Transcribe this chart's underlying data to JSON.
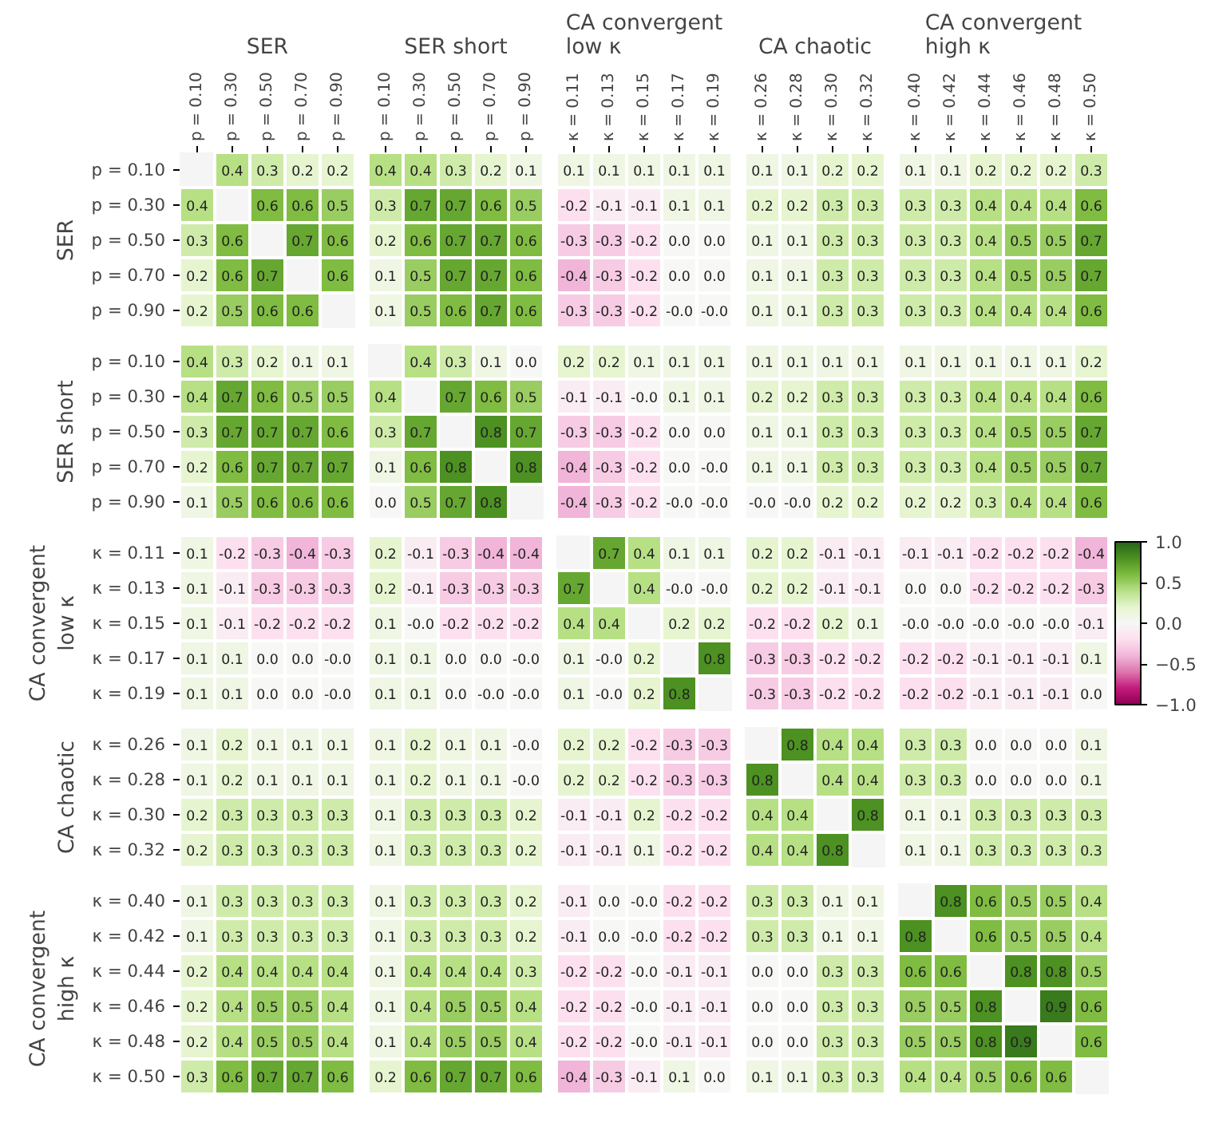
{
  "chart_data": [
    {
      "type": "heatmap",
      "title": "SER",
      "ylabel": "SER",
      "categories": [
        "p = 0.10",
        "p = 0.30",
        "p = 0.50",
        "p = 0.70",
        "p = 0.90"
      ],
      "y_categories": [
        "p = 0.10",
        "p = 0.30",
        "p = 0.50",
        "p = 0.70",
        "p = 0.90"
      ],
      "cells": [
        [
          null,
          0.4,
          0.3,
          0.2,
          0.2
        ],
        [
          0.4,
          null,
          0.6,
          0.6,
          0.5
        ],
        [
          0.3,
          0.6,
          null,
          0.7,
          0.6
        ],
        [
          0.2,
          0.6,
          0.7,
          null,
          0.6
        ],
        [
          0.2,
          0.5,
          0.6,
          0.6,
          null
        ]
      ],
      "data_labels": true
    },
    {
      "type": "heatmap",
      "title": "SER short",
      "categories": [
        "p = 0.10",
        "p = 0.30",
        "p = 0.50",
        "p = 0.70",
        "p = 0.90"
      ],
      "y_categories": [
        "p = 0.10",
        "p = 0.30",
        "p = 0.50",
        "p = 0.70",
        "p = 0.90"
      ],
      "cells": [
        [
          0.4,
          0.4,
          0.3,
          0.2,
          0.1
        ],
        [
          0.3,
          0.7,
          0.7,
          0.6,
          0.5
        ],
        [
          0.2,
          0.6,
          0.7,
          0.7,
          0.6
        ],
        [
          0.1,
          0.5,
          0.7,
          0.7,
          0.6
        ],
        [
          0.1,
          0.5,
          0.6,
          0.7,
          0.6
        ]
      ],
      "data_labels": true,
      "tick_labels": "x"
    },
    {
      "type": "heatmap",
      "title": "CA convergent\nlow κ",
      "categories": [
        "κ = 0.11",
        "κ = 0.13",
        "κ = 0.15",
        "κ = 0.17",
        "κ = 0.19"
      ],
      "y_categories": [
        "p = 0.10",
        "p = 0.30",
        "p = 0.50",
        "p = 0.70",
        "p = 0.90"
      ],
      "cells": [
        [
          0.1,
          0.1,
          0.1,
          0.1,
          0.1
        ],
        [
          -0.2,
          -0.1,
          -0.1,
          0.1,
          0.1
        ],
        [
          -0.3,
          -0.3,
          -0.2,
          0.0,
          0.0
        ],
        [
          -0.4,
          -0.3,
          -0.2,
          0.0,
          0.0
        ],
        [
          -0.3,
          -0.3,
          -0.2,
          -0.0,
          -0.0
        ]
      ],
      "cell_labels": [
        [
          "0.1",
          "0.1",
          "0.1",
          "0.1",
          "0.1"
        ],
        [
          "-0.2",
          "-0.1",
          "-0.1",
          "0.1",
          "0.1"
        ],
        [
          "-0.3",
          "-0.3",
          "-0.2",
          "0.0",
          "0.0"
        ],
        [
          "-0.4",
          "-0.3",
          "-0.2",
          "0.0",
          "0.0"
        ],
        [
          "-0.3",
          "-0.3",
          "-0.2",
          "-0.0",
          "-0.0"
        ]
      ],
      "data_labels": true,
      "tick_labels": "x"
    },
    {
      "type": "heatmap",
      "title": "CA chaotic",
      "categories": [
        "κ = 0.26",
        "κ = 0.28",
        "κ = 0.30",
        "κ = 0.32"
      ],
      "y_categories": [
        "p = 0.10",
        "p = 0.30",
        "p = 0.50",
        "p = 0.70",
        "p = 0.90"
      ],
      "cells": [
        [
          0.1,
          0.1,
          0.2,
          0.2
        ],
        [
          0.2,
          0.2,
          0.3,
          0.3
        ],
        [
          0.1,
          0.1,
          0.3,
          0.3
        ],
        [
          0.1,
          0.1,
          0.3,
          0.3
        ],
        [
          0.1,
          0.1,
          0.3,
          0.3
        ]
      ],
      "data_labels": true,
      "tick_labels": "x"
    },
    {
      "type": "heatmap",
      "title": "CA convergent\nhigh κ",
      "categories": [
        "κ = 0.40",
        "κ = 0.42",
        "κ = 0.44",
        "κ = 0.46",
        "κ = 0.48",
        "κ = 0.50"
      ],
      "y_categories": [
        "p = 0.10",
        "p = 0.30",
        "p = 0.50",
        "p = 0.70",
        "p = 0.90"
      ],
      "cells": [
        [
          0.1,
          0.1,
          0.2,
          0.2,
          0.2,
          0.3
        ],
        [
          0.3,
          0.3,
          0.4,
          0.4,
          0.4,
          0.6
        ],
        [
          0.3,
          0.3,
          0.4,
          0.5,
          0.5,
          0.7
        ],
        [
          0.3,
          0.3,
          0.4,
          0.5,
          0.5,
          0.7
        ],
        [
          0.3,
          0.3,
          0.4,
          0.4,
          0.4,
          0.6
        ]
      ],
      "data_labels": true,
      "tick_labels": "x"
    },
    {
      "type": "heatmap",
      "ylabel": "SER short",
      "categories": [
        "p = 0.10",
        "p = 0.30",
        "p = 0.50",
        "p = 0.70",
        "p = 0.90"
      ],
      "y_categories": [
        "p = 0.10",
        "p = 0.30",
        "p = 0.50",
        "p = 0.70",
        "p = 0.90"
      ],
      "cells": [
        [
          0.4,
          0.3,
          0.2,
          0.1,
          0.1
        ],
        [
          0.4,
          0.7,
          0.6,
          0.5,
          0.5
        ],
        [
          0.3,
          0.7,
          0.7,
          0.7,
          0.6
        ],
        [
          0.2,
          0.6,
          0.7,
          0.7,
          0.7
        ],
        [
          0.1,
          0.5,
          0.6,
          0.6,
          0.6
        ]
      ],
      "data_labels": true,
      "tick_labels": "y"
    },
    {
      "type": "heatmap",
      "categories": [
        "p = 0.10",
        "p = 0.30",
        "p = 0.50",
        "p = 0.70",
        "p = 0.90"
      ],
      "y_categories": [
        "p = 0.10",
        "p = 0.30",
        "p = 0.50",
        "p = 0.70",
        "p = 0.90"
      ],
      "cells": [
        [
          null,
          0.4,
          0.3,
          0.1,
          0.0
        ],
        [
          0.4,
          null,
          0.7,
          0.6,
          0.5
        ],
        [
          0.3,
          0.7,
          null,
          0.8,
          0.7
        ],
        [
          0.1,
          0.6,
          0.8,
          null,
          0.8
        ],
        [
          0.0,
          0.5,
          0.7,
          0.8,
          null
        ]
      ],
      "cell_labels": [
        [
          null,
          "0.4",
          "0.3",
          "0.1",
          "0.0"
        ],
        [
          "0.4",
          null,
          "0.7",
          "0.6",
          "0.5"
        ],
        [
          "0.3",
          "0.7",
          null,
          "0.8",
          "0.7"
        ],
        [
          "0.1",
          "0.6",
          "0.8",
          null,
          "0.8"
        ],
        [
          "0.0",
          "0.5",
          "0.7",
          "0.8",
          null
        ]
      ],
      "data_labels": true,
      "tick_labels": false
    },
    {
      "type": "heatmap",
      "categories": [
        "κ = 0.11",
        "κ = 0.13",
        "κ = 0.15",
        "κ = 0.17",
        "κ = 0.19"
      ],
      "y_categories": [
        "p = 0.10",
        "p = 0.30",
        "p = 0.50",
        "p = 0.70",
        "p = 0.90"
      ],
      "cells": [
        [
          0.2,
          0.2,
          0.1,
          0.1,
          0.1
        ],
        [
          -0.1,
          -0.1,
          -0.0,
          0.1,
          0.1
        ],
        [
          -0.3,
          -0.3,
          -0.2,
          0.0,
          0.0
        ],
        [
          -0.4,
          -0.3,
          -0.2,
          0.0,
          -0.0
        ],
        [
          -0.4,
          -0.3,
          -0.2,
          -0.0,
          -0.0
        ]
      ],
      "cell_labels": [
        [
          "0.2",
          "0.2",
          "0.1",
          "0.1",
          "0.1"
        ],
        [
          "-0.1",
          "-0.1",
          "-0.0",
          "0.1",
          "0.1"
        ],
        [
          "-0.3",
          "-0.3",
          "-0.2",
          "0.0",
          "0.0"
        ],
        [
          "-0.4",
          "-0.3",
          "-0.2",
          "0.0",
          "-0.0"
        ],
        [
          "-0.4",
          "-0.3",
          "-0.2",
          "-0.0",
          "-0.0"
        ]
      ],
      "data_labels": true,
      "tick_labels": false
    },
    {
      "type": "heatmap",
      "categories": [
        "κ = 0.26",
        "κ = 0.28",
        "κ = 0.30",
        "κ = 0.32"
      ],
      "y_categories": [
        "p = 0.10",
        "p = 0.30",
        "p = 0.50",
        "p = 0.70",
        "p = 0.90"
      ],
      "cells": [
        [
          0.1,
          0.1,
          0.1,
          0.1
        ],
        [
          0.2,
          0.2,
          0.3,
          0.3
        ],
        [
          0.1,
          0.1,
          0.3,
          0.3
        ],
        [
          0.1,
          0.1,
          0.3,
          0.3
        ],
        [
          -0.0,
          -0.0,
          0.2,
          0.2
        ]
      ],
      "cell_labels": [
        [
          "0.1",
          "0.1",
          "0.1",
          "0.1"
        ],
        [
          "0.2",
          "0.2",
          "0.3",
          "0.3"
        ],
        [
          "0.1",
          "0.1",
          "0.3",
          "0.3"
        ],
        [
          "0.1",
          "0.1",
          "0.3",
          "0.3"
        ],
        [
          "-0.0",
          "-0.0",
          "0.2",
          "0.2"
        ]
      ],
      "data_labels": true,
      "tick_labels": false
    },
    {
      "type": "heatmap",
      "categories": [
        "κ = 0.40",
        "κ = 0.42",
        "κ = 0.44",
        "κ = 0.46",
        "κ = 0.48",
        "κ = 0.50"
      ],
      "y_categories": [
        "p = 0.10",
        "p = 0.30",
        "p = 0.50",
        "p = 0.70",
        "p = 0.90"
      ],
      "cells": [
        [
          0.1,
          0.1,
          0.1,
          0.1,
          0.1,
          0.2
        ],
        [
          0.3,
          0.3,
          0.4,
          0.4,
          0.4,
          0.6
        ],
        [
          0.3,
          0.3,
          0.4,
          0.5,
          0.5,
          0.7
        ],
        [
          0.3,
          0.3,
          0.4,
          0.5,
          0.5,
          0.7
        ],
        [
          0.2,
          0.2,
          0.3,
          0.4,
          0.4,
          0.6
        ]
      ],
      "data_labels": true,
      "tick_labels": false
    },
    {
      "type": "heatmap",
      "ylabel": "CA convergent\nlow κ",
      "categories": [
        "p = 0.10",
        "p = 0.30",
        "p = 0.50",
        "p = 0.70",
        "p = 0.90"
      ],
      "y_categories": [
        "κ = 0.11",
        "κ = 0.13",
        "κ = 0.15",
        "κ = 0.17",
        "κ = 0.19"
      ],
      "cells": [
        [
          0.1,
          -0.2,
          -0.3,
          -0.4,
          -0.3
        ],
        [
          0.1,
          -0.1,
          -0.3,
          -0.3,
          -0.3
        ],
        [
          0.1,
          -0.1,
          -0.2,
          -0.2,
          -0.2
        ],
        [
          0.1,
          0.1,
          0.0,
          0.0,
          -0.0
        ],
        [
          0.1,
          0.1,
          0.0,
          0.0,
          -0.0
        ]
      ],
      "cell_labels": [
        [
          "0.1",
          "-0.2",
          "-0.3",
          "-0.4",
          "-0.3"
        ],
        [
          "0.1",
          "-0.1",
          "-0.3",
          "-0.3",
          "-0.3"
        ],
        [
          "0.1",
          "-0.1",
          "-0.2",
          "-0.2",
          "-0.2"
        ],
        [
          "0.1",
          "0.1",
          "0.0",
          "0.0",
          "-0.0"
        ],
        [
          "0.1",
          "0.1",
          "0.0",
          "0.0",
          "-0.0"
        ]
      ],
      "data_labels": true,
      "tick_labels": "y"
    },
    {
      "type": "heatmap",
      "categories": [
        "p = 0.10",
        "p = 0.30",
        "p = 0.50",
        "p = 0.70",
        "p = 0.90"
      ],
      "y_categories": [
        "κ = 0.11",
        "κ = 0.13",
        "κ = 0.15",
        "κ = 0.17",
        "κ = 0.19"
      ],
      "cells": [
        [
          0.2,
          -0.1,
          -0.3,
          -0.4,
          -0.4
        ],
        [
          0.2,
          -0.1,
          -0.3,
          -0.3,
          -0.3
        ],
        [
          0.1,
          -0.0,
          -0.2,
          -0.2,
          -0.2
        ],
        [
          0.1,
          0.1,
          0.0,
          0.0,
          -0.0
        ],
        [
          0.1,
          0.1,
          0.0,
          -0.0,
          -0.0
        ]
      ],
      "cell_labels": [
        [
          "0.2",
          "-0.1",
          "-0.3",
          "-0.4",
          "-0.4"
        ],
        [
          "0.2",
          "-0.1",
          "-0.3",
          "-0.3",
          "-0.3"
        ],
        [
          "0.1",
          "-0.0",
          "-0.2",
          "-0.2",
          "-0.2"
        ],
        [
          "0.1",
          "0.1",
          "0.0",
          "0.0",
          "-0.0"
        ],
        [
          "0.1",
          "0.1",
          "0.0",
          "-0.0",
          "-0.0"
        ]
      ],
      "data_labels": true,
      "tick_labels": false
    },
    {
      "type": "heatmap",
      "categories": [
        "κ = 0.11",
        "κ = 0.13",
        "κ = 0.15",
        "κ = 0.17",
        "κ = 0.19"
      ],
      "y_categories": [
        "κ = 0.11",
        "κ = 0.13",
        "κ = 0.15",
        "κ = 0.17",
        "κ = 0.19"
      ],
      "cells": [
        [
          null,
          0.7,
          0.4,
          0.1,
          0.1
        ],
        [
          0.7,
          null,
          0.4,
          -0.0,
          -0.0
        ],
        [
          0.4,
          0.4,
          null,
          0.2,
          0.2
        ],
        [
          0.1,
          -0.0,
          0.2,
          null,
          0.8
        ],
        [
          0.1,
          -0.0,
          0.2,
          0.8,
          null
        ]
      ],
      "cell_labels": [
        [
          null,
          "0.7",
          "0.4",
          "0.1",
          "0.1"
        ],
        [
          "0.7",
          null,
          "0.4",
          "-0.0",
          "-0.0"
        ],
        [
          "0.4",
          "0.4",
          null,
          "0.2",
          "0.2"
        ],
        [
          "0.1",
          "-0.0",
          "0.2",
          null,
          "0.8"
        ],
        [
          "0.1",
          "-0.0",
          "0.2",
          "0.8",
          null
        ]
      ],
      "data_labels": true,
      "tick_labels": false
    },
    {
      "type": "heatmap",
      "categories": [
        "κ = 0.26",
        "κ = 0.28",
        "κ = 0.30",
        "κ = 0.32"
      ],
      "y_categories": [
        "κ = 0.11",
        "κ = 0.13",
        "κ = 0.15",
        "κ = 0.17",
        "κ = 0.19"
      ],
      "cells": [
        [
          0.2,
          0.2,
          -0.1,
          -0.1
        ],
        [
          0.2,
          0.2,
          -0.1,
          -0.1
        ],
        [
          -0.2,
          -0.2,
          0.2,
          0.1
        ],
        [
          -0.3,
          -0.3,
          -0.2,
          -0.2
        ],
        [
          -0.3,
          -0.3,
          -0.2,
          -0.2
        ]
      ],
      "data_labels": true,
      "tick_labels": false
    },
    {
      "type": "heatmap",
      "categories": [
        "κ = 0.40",
        "κ = 0.42",
        "κ = 0.44",
        "κ = 0.46",
        "κ = 0.48",
        "κ = 0.50"
      ],
      "y_categories": [
        "κ = 0.11",
        "κ = 0.13",
        "κ = 0.15",
        "κ = 0.17",
        "κ = 0.19"
      ],
      "cells": [
        [
          -0.1,
          -0.1,
          -0.2,
          -0.2,
          -0.2,
          -0.4
        ],
        [
          0.0,
          0.0,
          -0.2,
          -0.2,
          -0.2,
          -0.3
        ],
        [
          -0.0,
          -0.0,
          -0.0,
          -0.0,
          -0.0,
          -0.1
        ],
        [
          -0.2,
          -0.2,
          -0.1,
          -0.1,
          -0.1,
          0.1
        ],
        [
          -0.2,
          -0.2,
          -0.1,
          -0.1,
          -0.1,
          0.0
        ]
      ],
      "cell_labels": [
        [
          "-0.1",
          "-0.1",
          "-0.2",
          "-0.2",
          "-0.2",
          "-0.4"
        ],
        [
          "0.0",
          "0.0",
          "-0.2",
          "-0.2",
          "-0.2",
          "-0.3"
        ],
        [
          "-0.0",
          "-0.0",
          "-0.0",
          "-0.0",
          "-0.0",
          "-0.1"
        ],
        [
          "-0.2",
          "-0.2",
          "-0.1",
          "-0.1",
          "-0.1",
          "0.1"
        ],
        [
          "-0.2",
          "-0.2",
          "-0.1",
          "-0.1",
          "-0.1",
          "0.0"
        ]
      ],
      "clim": [
        -1,
        1
      ],
      "cticks": [
        {
          "value": -1.0,
          "label": "−1.0"
        },
        {
          "value": -0.5,
          "label": "−0.5"
        },
        {
          "value": 0.0,
          "label": "0.0"
        },
        {
          "value": 0.5,
          "label": "0.5"
        },
        {
          "value": 1.0,
          "label": "1.0"
        }
      ],
      "data_labels": true,
      "tick_labels": false
    },
    {
      "type": "heatmap",
      "ylabel": "CA chaotic",
      "categories": [
        "p = 0.10",
        "p = 0.30",
        "p = 0.50",
        "p = 0.70",
        "p = 0.90"
      ],
      "y_categories": [
        "κ = 0.26",
        "κ = 0.28",
        "κ = 0.30",
        "κ = 0.32"
      ],
      "cells": [
        [
          0.1,
          0.2,
          0.1,
          0.1,
          0.1
        ],
        [
          0.1,
          0.2,
          0.1,
          0.1,
          0.1
        ],
        [
          0.2,
          0.3,
          0.3,
          0.3,
          0.3
        ],
        [
          0.2,
          0.3,
          0.3,
          0.3,
          0.3
        ]
      ],
      "data_labels": true,
      "tick_labels": "y"
    },
    {
      "type": "heatmap",
      "categories": [
        "p = 0.10",
        "p = 0.30",
        "p = 0.50",
        "p = 0.70",
        "p = 0.90"
      ],
      "y_categories": [
        "κ = 0.26",
        "κ = 0.28",
        "κ = 0.30",
        "κ = 0.32"
      ],
      "cells": [
        [
          0.1,
          0.2,
          0.1,
          0.1,
          -0.0
        ],
        [
          0.1,
          0.2,
          0.1,
          0.1,
          -0.0
        ],
        [
          0.1,
          0.3,
          0.3,
          0.3,
          0.2
        ],
        [
          0.1,
          0.3,
          0.3,
          0.3,
          0.2
        ]
      ],
      "cell_labels": [
        [
          "0.1",
          "0.2",
          "0.1",
          "0.1",
          "-0.0"
        ],
        [
          "0.1",
          "0.2",
          "0.1",
          "0.1",
          "-0.0"
        ],
        [
          "0.1",
          "0.3",
          "0.3",
          "0.3",
          "0.2"
        ],
        [
          "0.1",
          "0.3",
          "0.3",
          "0.3",
          "0.2"
        ]
      ],
      "data_labels": true,
      "tick_labels": false
    },
    {
      "type": "heatmap",
      "categories": [
        "κ = 0.11",
        "κ = 0.13",
        "κ = 0.15",
        "κ = 0.17",
        "κ = 0.19"
      ],
      "y_categories": [
        "κ = 0.26",
        "κ = 0.28",
        "κ = 0.30",
        "κ = 0.32"
      ],
      "cells": [
        [
          0.2,
          0.2,
          -0.2,
          -0.3,
          -0.3
        ],
        [
          0.2,
          0.2,
          -0.2,
          -0.3,
          -0.3
        ],
        [
          -0.1,
          -0.1,
          0.2,
          -0.2,
          -0.2
        ],
        [
          -0.1,
          -0.1,
          0.1,
          -0.2,
          -0.2
        ]
      ],
      "data_labels": true,
      "tick_labels": false
    },
    {
      "type": "heatmap",
      "categories": [
        "κ = 0.26",
        "κ = 0.28",
        "κ = 0.30",
        "κ = 0.32"
      ],
      "y_categories": [
        "κ = 0.26",
        "κ = 0.28",
        "κ = 0.30",
        "κ = 0.32"
      ],
      "cells": [
        [
          null,
          0.8,
          0.4,
          0.4
        ],
        [
          0.8,
          null,
          0.4,
          0.4
        ],
        [
          0.4,
          0.4,
          null,
          0.8
        ],
        [
          0.4,
          0.4,
          0.8,
          null
        ]
      ],
      "data_labels": true,
      "tick_labels": false
    },
    {
      "type": "heatmap",
      "categories": [
        "κ = 0.40",
        "κ = 0.42",
        "κ = 0.44",
        "κ = 0.46",
        "κ = 0.48",
        "κ = 0.50"
      ],
      "y_categories": [
        "κ = 0.26",
        "κ = 0.28",
        "κ = 0.30",
        "κ = 0.32"
      ],
      "cells": [
        [
          0.3,
          0.3,
          0.0,
          0.0,
          0.0,
          0.1
        ],
        [
          0.3,
          0.3,
          0.0,
          0.0,
          0.0,
          0.1
        ],
        [
          0.1,
          0.1,
          0.3,
          0.3,
          0.3,
          0.3
        ],
        [
          0.1,
          0.1,
          0.3,
          0.3,
          0.3,
          0.3
        ]
      ],
      "cell_labels": [
        [
          "0.3",
          "0.3",
          "0.0",
          "0.0",
          "0.0",
          "0.1"
        ],
        [
          "0.3",
          "0.3",
          "0.0",
          "0.0",
          "0.0",
          "0.1"
        ],
        [
          "0.1",
          "0.1",
          "0.3",
          "0.3",
          "0.3",
          "0.3"
        ],
        [
          "0.1",
          "0.1",
          "0.3",
          "0.3",
          "0.3",
          "0.3"
        ]
      ],
      "data_labels": true,
      "tick_labels": false
    },
    {
      "type": "heatmap",
      "ylabel": "CA convergent\nhigh κ",
      "categories": [
        "p = 0.10",
        "p = 0.30",
        "p = 0.50",
        "p = 0.70",
        "p = 0.90"
      ],
      "y_categories": [
        "κ = 0.40",
        "κ = 0.42",
        "κ = 0.44",
        "κ = 0.46",
        "κ = 0.48",
        "κ = 0.50"
      ],
      "cells": [
        [
          0.1,
          0.3,
          0.3,
          0.3,
          0.3
        ],
        [
          0.1,
          0.3,
          0.3,
          0.3,
          0.3
        ],
        [
          0.2,
          0.4,
          0.4,
          0.4,
          0.4
        ],
        [
          0.2,
          0.4,
          0.5,
          0.5,
          0.4
        ],
        [
          0.2,
          0.4,
          0.5,
          0.5,
          0.4
        ],
        [
          0.3,
          0.6,
          0.7,
          0.7,
          0.6
        ]
      ],
      "data_labels": true,
      "tick_labels": "y"
    },
    {
      "type": "heatmap",
      "categories": [
        "p = 0.10",
        "p = 0.30",
        "p = 0.50",
        "p = 0.70",
        "p = 0.90"
      ],
      "y_categories": [
        "κ = 0.40",
        "κ = 0.42",
        "κ = 0.44",
        "κ = 0.46",
        "κ = 0.48",
        "κ = 0.50"
      ],
      "cells": [
        [
          0.1,
          0.3,
          0.3,
          0.3,
          0.2
        ],
        [
          0.1,
          0.3,
          0.3,
          0.3,
          0.2
        ],
        [
          0.1,
          0.4,
          0.4,
          0.4,
          0.3
        ],
        [
          0.1,
          0.4,
          0.5,
          0.5,
          0.4
        ],
        [
          0.1,
          0.4,
          0.5,
          0.5,
          0.4
        ],
        [
          0.2,
          0.6,
          0.7,
          0.7,
          0.6
        ]
      ],
      "data_labels": true,
      "tick_labels": false
    },
    {
      "type": "heatmap",
      "categories": [
        "κ = 0.11",
        "κ = 0.13",
        "κ = 0.15",
        "κ = 0.17",
        "κ = 0.19"
      ],
      "y_categories": [
        "κ = 0.40",
        "κ = 0.42",
        "κ = 0.44",
        "κ = 0.46",
        "κ = 0.48",
        "κ = 0.50"
      ],
      "cells": [
        [
          -0.1,
          0.0,
          -0.0,
          -0.2,
          -0.2
        ],
        [
          -0.1,
          0.0,
          -0.0,
          -0.2,
          -0.2
        ],
        [
          -0.2,
          -0.2,
          -0.0,
          -0.1,
          -0.1
        ],
        [
          -0.2,
          -0.2,
          -0.0,
          -0.1,
          -0.1
        ],
        [
          -0.2,
          -0.2,
          -0.0,
          -0.1,
          -0.1
        ],
        [
          -0.4,
          -0.3,
          -0.1,
          0.1,
          0.0
        ]
      ],
      "cell_labels": [
        [
          "-0.1",
          "0.0",
          "-0.0",
          "-0.2",
          "-0.2"
        ],
        [
          "-0.1",
          "0.0",
          "-0.0",
          "-0.2",
          "-0.2"
        ],
        [
          "-0.2",
          "-0.2",
          "-0.0",
          "-0.1",
          "-0.1"
        ],
        [
          "-0.2",
          "-0.2",
          "-0.0",
          "-0.1",
          "-0.1"
        ],
        [
          "-0.2",
          "-0.2",
          "-0.0",
          "-0.1",
          "-0.1"
        ],
        [
          "-0.4",
          "-0.3",
          "-0.1",
          "0.1",
          "0.0"
        ]
      ],
      "data_labels": true,
      "tick_labels": false
    },
    {
      "type": "heatmap",
      "categories": [
        "κ = 0.26",
        "κ = 0.28",
        "κ = 0.30",
        "κ = 0.32"
      ],
      "y_categories": [
        "κ = 0.40",
        "κ = 0.42",
        "κ = 0.44",
        "κ = 0.46",
        "κ = 0.48",
        "κ = 0.50"
      ],
      "cells": [
        [
          0.3,
          0.3,
          0.1,
          0.1
        ],
        [
          0.3,
          0.3,
          0.1,
          0.1
        ],
        [
          0.0,
          0.0,
          0.3,
          0.3
        ],
        [
          0.0,
          0.0,
          0.3,
          0.3
        ],
        [
          0.0,
          0.0,
          0.3,
          0.3
        ],
        [
          0.1,
          0.1,
          0.3,
          0.3
        ]
      ],
      "cell_labels": [
        [
          "0.3",
          "0.3",
          "0.1",
          "0.1"
        ],
        [
          "0.3",
          "0.3",
          "0.1",
          "0.1"
        ],
        [
          "0.0",
          "0.0",
          "0.3",
          "0.3"
        ],
        [
          "0.0",
          "0.0",
          "0.3",
          "0.3"
        ],
        [
          "0.0",
          "0.0",
          "0.3",
          "0.3"
        ],
        [
          "0.1",
          "0.1",
          "0.3",
          "0.3"
        ]
      ],
      "data_labels": true,
      "tick_labels": false
    },
    {
      "type": "heatmap",
      "categories": [
        "κ = 0.40",
        "κ = 0.42",
        "κ = 0.44",
        "κ = 0.46",
        "κ = 0.48",
        "κ = 0.50"
      ],
      "y_categories": [
        "κ = 0.40",
        "κ = 0.42",
        "κ = 0.44",
        "κ = 0.46",
        "κ = 0.48",
        "κ = 0.50"
      ],
      "cells": [
        [
          null,
          0.8,
          0.6,
          0.5,
          0.5,
          0.4
        ],
        [
          0.8,
          null,
          0.6,
          0.5,
          0.5,
          0.4
        ],
        [
          0.6,
          0.6,
          null,
          0.8,
          0.8,
          0.5
        ],
        [
          0.5,
          0.5,
          0.8,
          null,
          0.9,
          0.6
        ],
        [
          0.5,
          0.5,
          0.8,
          0.9,
          null,
          0.6
        ],
        [
          0.4,
          0.4,
          0.5,
          0.6,
          0.6,
          null
        ]
      ],
      "data_labels": true,
      "tick_labels": false
    }
  ]
}
